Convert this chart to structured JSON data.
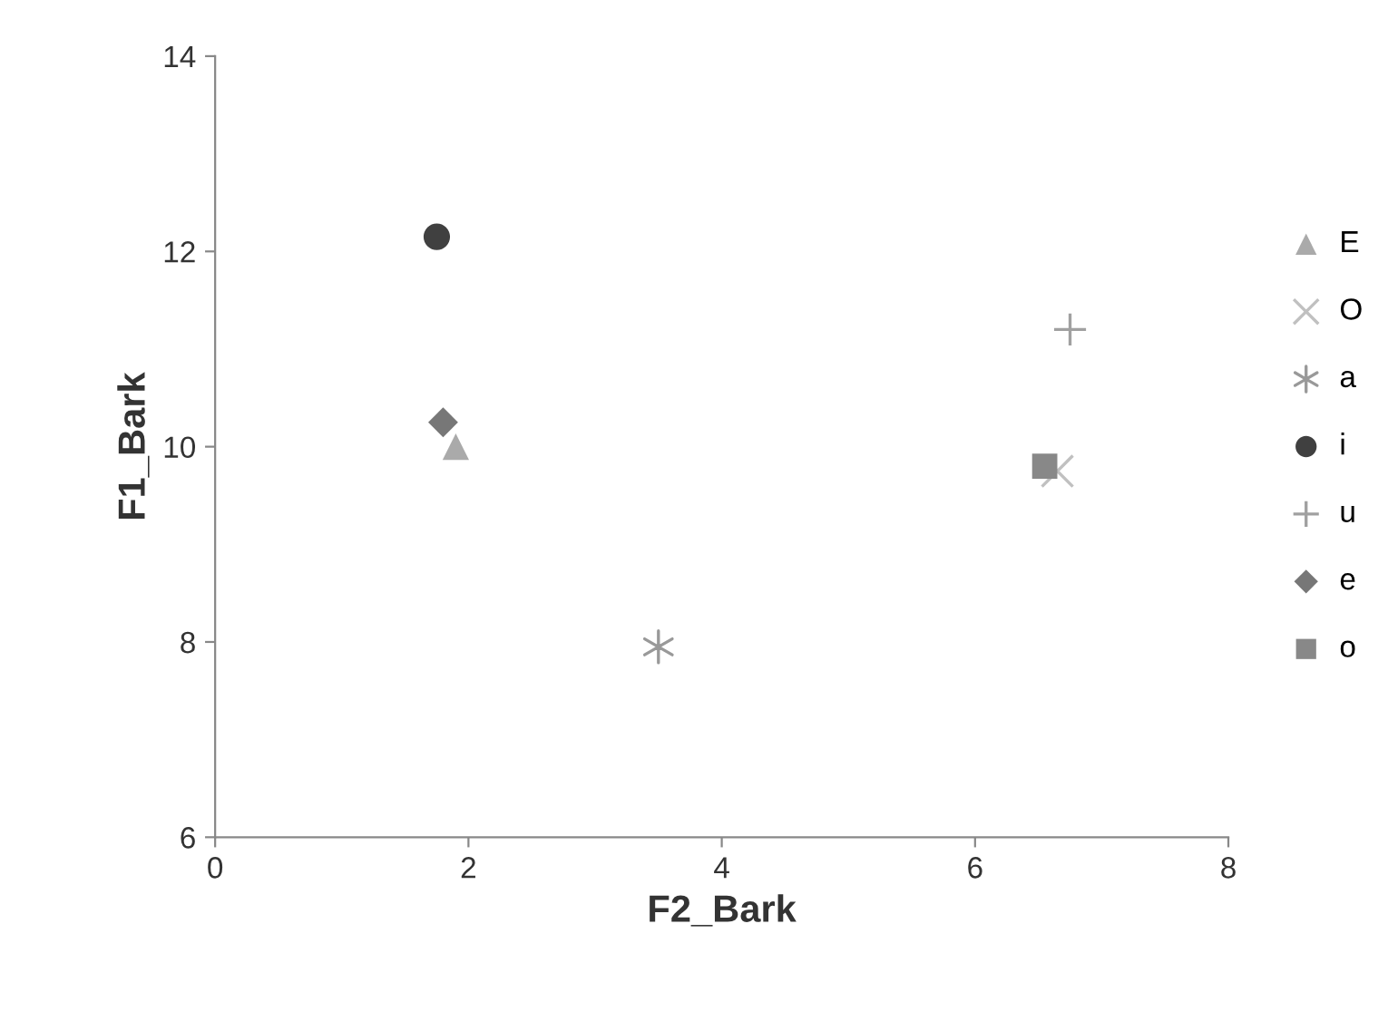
{
  "chart_data": {
    "type": "scatter",
    "xlabel": "F2_Bark",
    "ylabel": "F1_Bark",
    "xlim": [
      0,
      8
    ],
    "ylim": [
      6,
      14
    ],
    "xticks": [
      0,
      2,
      4,
      6,
      8
    ],
    "yticks": [
      6,
      8,
      10,
      12,
      14
    ],
    "grid": false,
    "legend": "right",
    "series": [
      {
        "name": "E",
        "color": "#aaaaaa",
        "marker": "triangle",
        "x": [
          1.9
        ],
        "values": [
          10.0
        ]
      },
      {
        "name": "O",
        "color": "#c0c0c0",
        "marker": "cross",
        "x": [
          6.65
        ],
        "values": [
          9.75
        ]
      },
      {
        "name": "a",
        "color": "#999999",
        "x": [
          3.5
        ],
        "values": [
          7.95
        ]
      },
      {
        "name": "i",
        "color": "#404040",
        "marker": "circle",
        "x": [
          1.75
        ],
        "values": [
          12.15
        ]
      },
      {
        "name": "u",
        "color": "#a0a0a0",
        "marker": "plus",
        "x": [
          6.75
        ],
        "values": [
          11.2
        ]
      },
      {
        "name": "e",
        "color": "#777777",
        "marker": "diamond",
        "x": [
          1.8
        ],
        "values": [
          10.25
        ]
      },
      {
        "name": "o",
        "color": "#888888",
        "marker": "square",
        "x": [
          6.55
        ],
        "values": [
          9.8
        ]
      }
    ]
  }
}
